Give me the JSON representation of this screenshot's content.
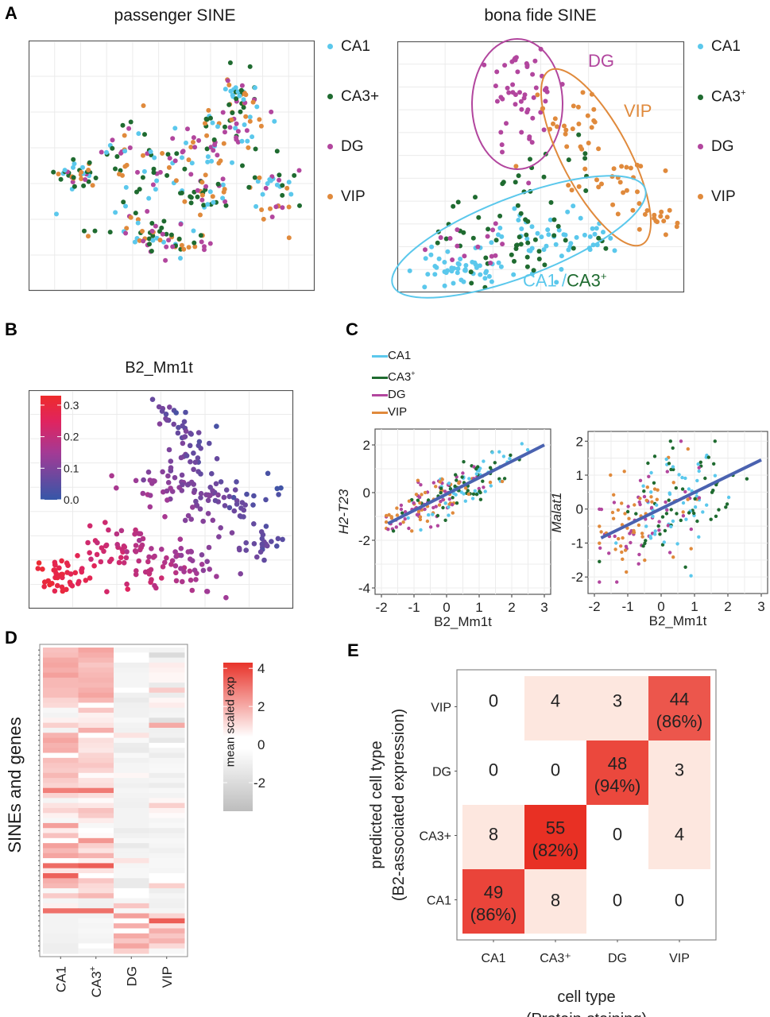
{
  "colors": {
    "CA1": "#5bc8ec",
    "CA3+": "#1f6b30",
    "DG": "#b2469e",
    "VIP": "#e08a3c",
    "fit_line": "#4a62b0",
    "heat_high": "#e8332a",
    "heat_mid": "#ffffff",
    "heat_low": "#bdbdbd",
    "grad_low": "#3557a8",
    "grad_mid": "#b0307e",
    "grad_high": "#ee2b2b"
  },
  "panels": {
    "A": {
      "label": "A"
    },
    "B": {
      "label": "B"
    },
    "C": {
      "label": "C"
    },
    "D": {
      "label": "D"
    },
    "E": {
      "label": "E"
    }
  },
  "chart_data": [
    {
      "id": "A-left",
      "type": "scatter",
      "title": "passenger SINE",
      "xlabel": "",
      "ylabel": "",
      "grid": true,
      "legend": {
        "placement": "right",
        "entries": [
          "CA1",
          "CA3+",
          "DG",
          "VIP"
        ]
      },
      "note": "t-SNE embedding; cell types intermixed"
    },
    {
      "id": "A-right",
      "type": "scatter",
      "title": "bona fide SINE",
      "xlabel": "",
      "ylabel": "",
      "grid": true,
      "legend": {
        "placement": "right",
        "entries": [
          "CA1",
          "CA3⁺",
          "DG",
          "VIP"
        ]
      },
      "annotations": [
        {
          "text": "DG",
          "color": "DG"
        },
        {
          "text": "VIP",
          "color": "VIP"
        },
        {
          "text": "CA1 /",
          "color": "CA1"
        },
        {
          "text": "CA3⁺",
          "color": "CA3+"
        }
      ],
      "note": "t-SNE embedding; cell types cluster into DG, VIP and CA1/CA3+ groups (ellipses)"
    },
    {
      "id": "B",
      "type": "scatter",
      "title": "B2_Mm1t",
      "colorbar": {
        "ticks": [
          "0.0",
          "0.1",
          "0.2",
          "0.3"
        ],
        "range": [
          0.0,
          0.33
        ],
        "placement": "top-left"
      },
      "grid": true,
      "note": "t-SNE embedding colored by B2_Mm1t expression; high (red) bottom-left, low (blue) top/right"
    },
    {
      "id": "C-left",
      "type": "scatter",
      "xlabel": "B2_Mm1t",
      "ylabel": "H2-T23",
      "xlim": [
        -2,
        3
      ],
      "ylim": [
        -4,
        2.4
      ],
      "xticks": [
        "-2",
        "-1",
        "0",
        "1",
        "2",
        "3"
      ],
      "yticks": [
        "-4",
        "-2",
        "0",
        "2"
      ],
      "fit_line": {
        "x": [
          -1.8,
          3.0
        ],
        "y": [
          -1.3,
          2.0
        ]
      },
      "legend": {
        "placement": "top",
        "entries": [
          "CA1",
          "CA3⁺",
          "DG",
          "VIP"
        ]
      }
    },
    {
      "id": "C-right",
      "type": "scatter",
      "xlabel": "B2_Mm1t",
      "ylabel": "Malat1",
      "xlim": [
        -2,
        3
      ],
      "ylim": [
        -2.3,
        2.1
      ],
      "xticks": [
        "-2",
        "-1",
        "0",
        "1",
        "2",
        "3"
      ],
      "yticks": [
        "-2",
        "-1",
        "0",
        "1",
        "2"
      ],
      "fit_line": {
        "x": [
          -1.8,
          3.0
        ],
        "y": [
          -0.85,
          1.45
        ]
      }
    },
    {
      "id": "D",
      "type": "heatmap",
      "ylabel": "SINEs and genes",
      "columns": [
        "CA1",
        "CA3⁺",
        "DG",
        "VIP"
      ],
      "colorbar": {
        "title": "mean scaled exp",
        "ticks": [
          "4",
          "2",
          "0",
          "-2"
        ],
        "range": [
          -3.5,
          4.3
        ]
      },
      "values": [
        [
          1.3,
          1.9,
          -0.3,
          -0.4
        ],
        [
          1.4,
          1.7,
          0.0,
          -1.8
        ],
        [
          1.8,
          1.5,
          0.0,
          -0.4
        ],
        [
          1.9,
          1.2,
          -0.6,
          0.4
        ],
        [
          1.7,
          1.4,
          -0.4,
          0.3
        ],
        [
          2.0,
          1.5,
          -0.3,
          0.2
        ],
        [
          1.5,
          1.6,
          -0.3,
          0.2
        ],
        [
          1.5,
          1.5,
          -0.3,
          -0.9
        ],
        [
          1.4,
          1.7,
          0.0,
          1.1
        ],
        [
          1.4,
          1.9,
          -0.6,
          -0.8
        ],
        [
          0.9,
          1.5,
          -0.9,
          0.2
        ],
        [
          0.8,
          0.0,
          -0.6,
          0.4
        ],
        [
          -0.2,
          1.2,
          -0.5,
          -0.4
        ],
        [
          -0.4,
          0.3,
          -0.5,
          -0.3
        ],
        [
          0.3,
          0.4,
          -0.1,
          -1.5
        ],
        [
          1.0,
          0.6,
          -0.4,
          1.8
        ],
        [
          -0.4,
          1.7,
          -0.5,
          -0.6
        ],
        [
          1.6,
          0.0,
          0.6,
          -0.5
        ],
        [
          1.9,
          0.7,
          -0.1,
          -1.1
        ],
        [
          1.6,
          0.6,
          -0.8,
          0.0
        ],
        [
          1.7,
          0.5,
          -0.9,
          -0.4
        ],
        [
          0.0,
          0.9,
          -0.1,
          -0.8
        ],
        [
          1.4,
          1.0,
          -0.5,
          -0.3
        ],
        [
          1.2,
          1.2,
          -0.3,
          -0.2
        ],
        [
          1.1,
          0.9,
          -0.3,
          -0.1
        ],
        [
          1.5,
          0.1,
          0.2,
          -0.7
        ],
        [
          1.1,
          0.6,
          -0.4,
          -0.3
        ],
        [
          0.9,
          0.7,
          -0.6,
          -0.8
        ],
        [
          2.7,
          2.8,
          -0.3,
          -0.2
        ],
        [
          0.9,
          0.7,
          -0.4,
          -0.4
        ],
        [
          -0.3,
          0.1,
          -0.5,
          0.2
        ],
        [
          0.6,
          0.5,
          -0.6,
          1.0
        ],
        [
          0.9,
          1.3,
          -0.4,
          0.3
        ],
        [
          0.3,
          1.1,
          -0.4,
          0.1
        ],
        [
          -0.2,
          0.4,
          -0.4,
          -0.3
        ],
        [
          2.0,
          -0.2,
          -0.4,
          -0.1
        ],
        [
          0.4,
          0.0,
          -0.8,
          -0.7
        ],
        [
          1.3,
          0.1,
          -0.5,
          -0.4
        ],
        [
          0.0,
          2.2,
          -0.2,
          -0.2
        ],
        [
          2.0,
          1.0,
          -1.0,
          -0.3
        ],
        [
          1.5,
          0.6,
          -0.4,
          -0.6
        ],
        [
          1.9,
          1.6,
          -0.4,
          -0.3
        ],
        [
          0.0,
          0.3,
          0.6,
          -0.2
        ],
        [
          3.1,
          3.4,
          -0.3,
          -0.2
        ],
        [
          0.5,
          0.6,
          -0.2,
          -0.3
        ],
        [
          3.3,
          0.0,
          -0.2,
          0.0
        ],
        [
          1.7,
          1.2,
          -0.9,
          0.0
        ],
        [
          1.5,
          0.8,
          -0.9,
          1.0
        ],
        [
          -0.1,
          0.7,
          0.0,
          -0.7
        ],
        [
          1.1,
          1.5,
          0.0,
          -0.3
        ],
        [
          -0.3,
          -0.5,
          -0.3,
          -0.5
        ],
        [
          0.3,
          -0.6,
          1.2,
          -0.6
        ],
        [
          3.0,
          3.0,
          -0.2,
          -0.3
        ],
        [
          -0.4,
          -0.4,
          2.0,
          0.9
        ],
        [
          -0.4,
          -0.2,
          0.0,
          3.4
        ],
        [
          -0.4,
          -0.3,
          1.7,
          0.6
        ],
        [
          -0.4,
          -0.2,
          0.0,
          1.7
        ],
        [
          -0.5,
          -0.3,
          1.8,
          1.2
        ],
        [
          -0.5,
          -0.4,
          1.2,
          1.6
        ],
        [
          -0.7,
          0.0,
          1.9,
          0.8
        ],
        [
          -0.7,
          -0.3,
          1.0,
          -0.2
        ]
      ]
    },
    {
      "id": "E",
      "type": "heatmap",
      "xlabel": "cell type",
      "xlabel2": "(Protein-staining)",
      "ylabel": "predicted cell type",
      "ylabel2": "(B2-associated expression)",
      "x_categories": [
        "CA1",
        "CA3⁺",
        "DG",
        "VIP"
      ],
      "y_categories": [
        "VIP",
        "DG",
        "CA3+",
        "CA1"
      ],
      "cells": [
        [
          {
            "n": 0,
            "pct": null
          },
          {
            "n": 4,
            "pct": null
          },
          {
            "n": 3,
            "pct": null
          },
          {
            "n": 44,
            "pct": "(86%)"
          }
        ],
        [
          {
            "n": 0,
            "pct": null
          },
          {
            "n": 0,
            "pct": null
          },
          {
            "n": 48,
            "pct": "(94%)"
          },
          {
            "n": 3,
            "pct": null
          }
        ],
        [
          {
            "n": 8,
            "pct": null
          },
          {
            "n": 55,
            "pct": "(82%)"
          },
          {
            "n": 0,
            "pct": null
          },
          {
            "n": 4,
            "pct": null
          }
        ],
        [
          {
            "n": 49,
            "pct": "(86%)"
          },
          {
            "n": 8,
            "pct": null
          },
          {
            "n": 0,
            "pct": null
          },
          {
            "n": 0,
            "pct": null
          }
        ]
      ],
      "max": 55
    }
  ],
  "legendA": [
    {
      "key": "CA1",
      "label": "CA1"
    },
    {
      "key": "CA3+",
      "label": "CA3+"
    },
    {
      "key": "DG",
      "label": "DG"
    },
    {
      "key": "VIP",
      "label": "VIP"
    }
  ],
  "legendA2": [
    {
      "key": "CA1",
      "label": "CA1",
      "sup": ""
    },
    {
      "key": "CA3+",
      "label": "CA3",
      "sup": "+"
    },
    {
      "key": "DG",
      "label": "DG",
      "sup": ""
    },
    {
      "key": "VIP",
      "label": "VIP",
      "sup": ""
    }
  ],
  "legendC": [
    {
      "key": "CA1",
      "label": "CA1",
      "sup": ""
    },
    {
      "key": "CA3+",
      "label": "CA3",
      "sup": "+"
    },
    {
      "key": "DG",
      "label": "DG",
      "sup": ""
    },
    {
      "key": "VIP",
      "label": "VIP",
      "sup": ""
    }
  ],
  "text": {
    "titleA1": "passenger SINE",
    "titleA2": "bona fide SINE",
    "titleB": "B2_Mm1t",
    "annDG": "DG",
    "annVIP": "VIP",
    "annCA1": "CA1 /",
    "annCA3": "CA3",
    "annCA3sup": "+",
    "C1ylabel": "H2-T23",
    "C2ylabel": "Malat1",
    "Cxlabel": "B2_Mm1t",
    "Dylabel": "SINEs and genes",
    "Dcbar": "mean scaled exp",
    "Dcols": [
      "CA1",
      "CA3",
      "DG",
      "VIP"
    ],
    "Dcols_sup": [
      "",
      "+",
      "",
      ""
    ],
    "Exlabel1": "cell type",
    "Exlabel2": "(Protein-staining)",
    "Eylabel1": "predicted cell type",
    "Eylabel2": "(B2-associated expression)"
  }
}
